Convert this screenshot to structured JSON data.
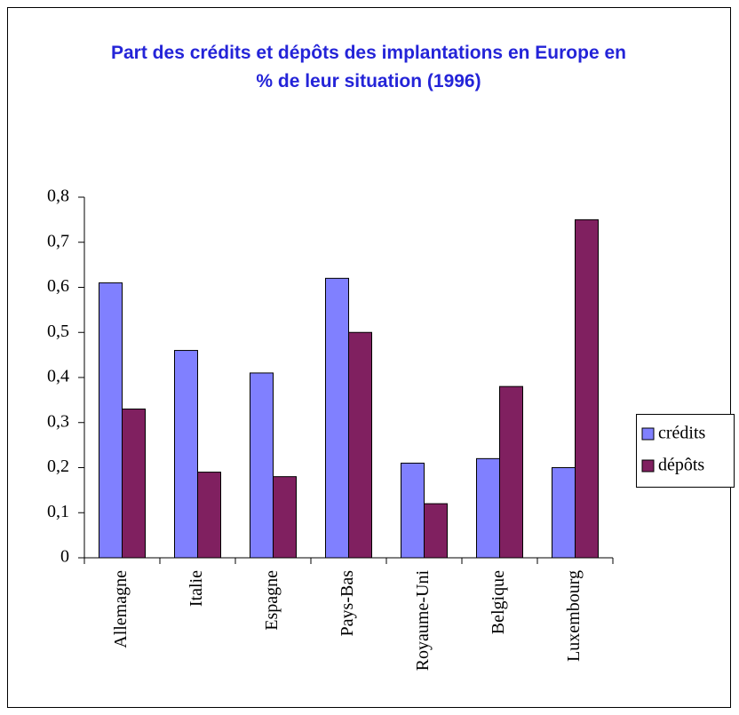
{
  "chart_data": {
    "type": "bar",
    "title": "Part des crédits et dépôts des implantations en Europe en % de leur situation (1996)",
    "categories": [
      "Allemagne",
      "Italie",
      "Espagne",
      "Pays-Bas",
      "Royaume-Uni",
      "Belgique",
      "Luxembourg"
    ],
    "series": [
      {
        "name": "crédits",
        "color": "#8080ff",
        "values": [
          0.61,
          0.46,
          0.41,
          0.62,
          0.21,
          0.22,
          0.2
        ]
      },
      {
        "name": "dépôts",
        "color": "#802060",
        "values": [
          0.33,
          0.19,
          0.18,
          0.5,
          0.12,
          0.38,
          0.75
        ]
      }
    ],
    "ylim": [
      0,
      0.8
    ],
    "yticks": [
      0,
      {
        "value": 0.1,
        "label": "0,1"
      },
      {
        "value": 0.2,
        "label": "0,2"
      },
      {
        "value": 0.3,
        "label": "0,3"
      },
      {
        "value": 0.4,
        "label": "0,4"
      },
      {
        "value": 0.5,
        "label": "0,5"
      },
      {
        "value": 0.6,
        "label": "0,6"
      },
      {
        "value": 0.7,
        "label": "0,7"
      },
      {
        "value": 0.8,
        "label": "0,8"
      }
    ],
    "grid": false,
    "legend": "right"
  }
}
